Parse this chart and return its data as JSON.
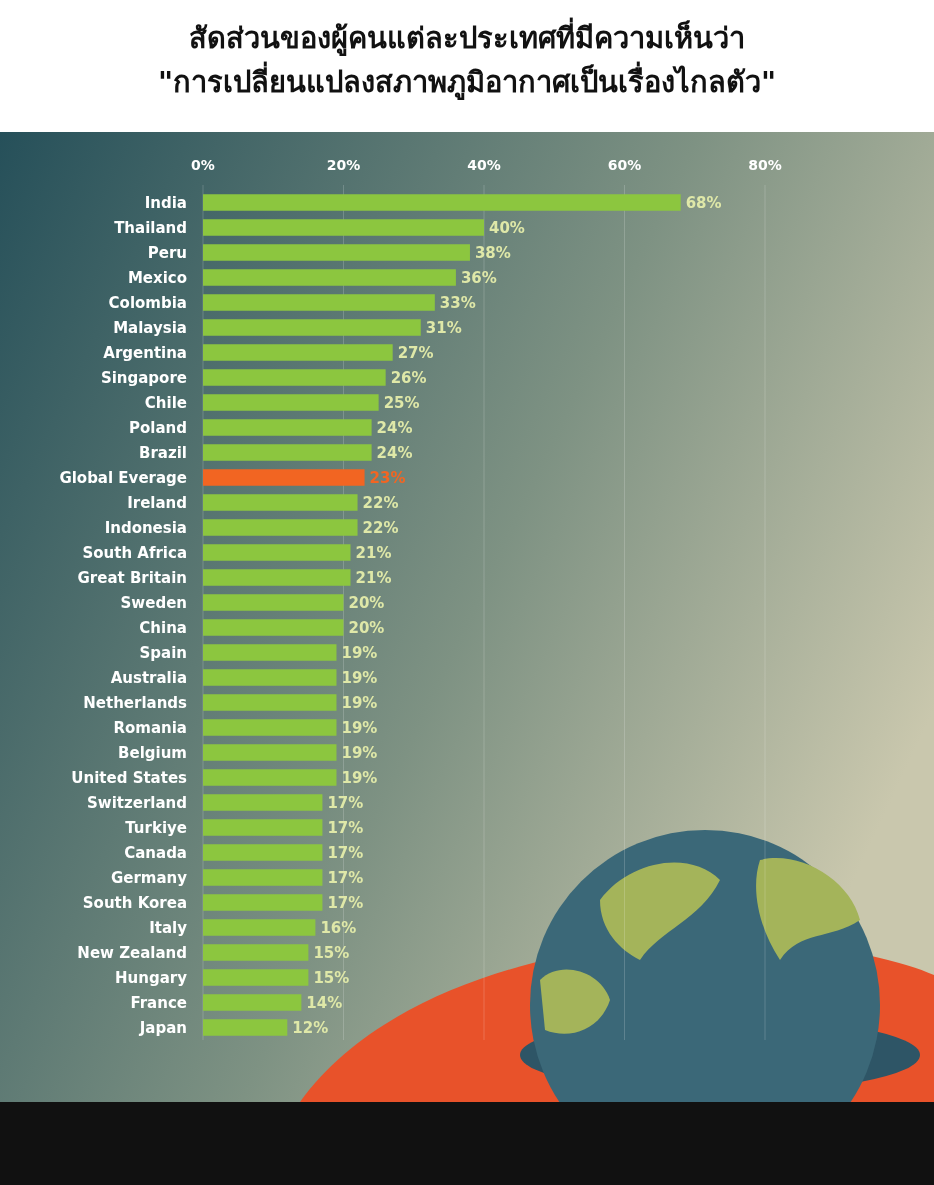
{
  "chart_data": {
    "type": "bar",
    "orientation": "horizontal",
    "title": "สัดส่วนของผู้คนแต่ละประเทศที่มีความเห็นว่า\n\"การเปลี่ยนแปลงสภาพภูมิอากาศเป็นเรื่องไกลตัว\"",
    "categories": [
      "India",
      "Thailand",
      "Peru",
      "Mexico",
      "Colombia",
      "Malaysia",
      "Argentina",
      "Singapore",
      "Chile",
      "Poland",
      "Brazil",
      "Global Everage",
      "Ireland",
      "Indonesia",
      "South Africa",
      "Great Britain",
      "Sweden",
      "China",
      "Spain",
      "Australia",
      "Netherlands",
      "Romania",
      "Belgium",
      "United States",
      "Switzerland",
      "Turkiye",
      "Canada",
      "Germany",
      "South Korea",
      "Italy",
      "New Zealand",
      "Hungary",
      "France",
      "Japan"
    ],
    "values": [
      68,
      40,
      38,
      36,
      33,
      31,
      27,
      26,
      25,
      24,
      24,
      23,
      22,
      22,
      21,
      21,
      20,
      20,
      19,
      19,
      19,
      19,
      19,
      19,
      17,
      17,
      17,
      17,
      17,
      16,
      15,
      15,
      14,
      12
    ],
    "value_labels": [
      "68%",
      "40%",
      "38%",
      "36%",
      "33%",
      "31%",
      "27%",
      "26%",
      "25%",
      "24%",
      "24%",
      "23%",
      "22%",
      "22%",
      "21%",
      "21%",
      "20%",
      "20%",
      "19%",
      "19%",
      "19%",
      "19%",
      "19%",
      "19%",
      "17%",
      "17%",
      "17%",
      "17%",
      "17%",
      "16%",
      "15%",
      "15%",
      "14%",
      "12%"
    ],
    "colors": [
      "#8cc63f",
      "#8cc63f",
      "#8cc63f",
      "#8cc63f",
      "#8cc63f",
      "#8cc63f",
      "#8cc63f",
      "#8cc63f",
      "#8cc63f",
      "#8cc63f",
      "#8cc63f",
      "#f26522",
      "#8cc63f",
      "#8cc63f",
      "#8cc63f",
      "#8cc63f",
      "#8cc63f",
      "#8cc63f",
      "#8cc63f",
      "#8cc63f",
      "#8cc63f",
      "#8cc63f",
      "#8cc63f",
      "#8cc63f",
      "#8cc63f",
      "#8cc63f",
      "#8cc63f",
      "#8cc63f",
      "#8cc63f",
      "#8cc63f",
      "#8cc63f",
      "#8cc63f",
      "#8cc63f",
      "#8cc63f"
    ],
    "xlim": [
      0,
      80
    ],
    "xticks": [
      {
        "value": 0,
        "label": "0%"
      },
      {
        "value": 20,
        "label": "20%"
      },
      {
        "value": 40,
        "label": "40%"
      },
      {
        "value": 60,
        "label": "60%"
      },
      {
        "value": 80,
        "label": "80%"
      }
    ],
    "grid": "x"
  }
}
